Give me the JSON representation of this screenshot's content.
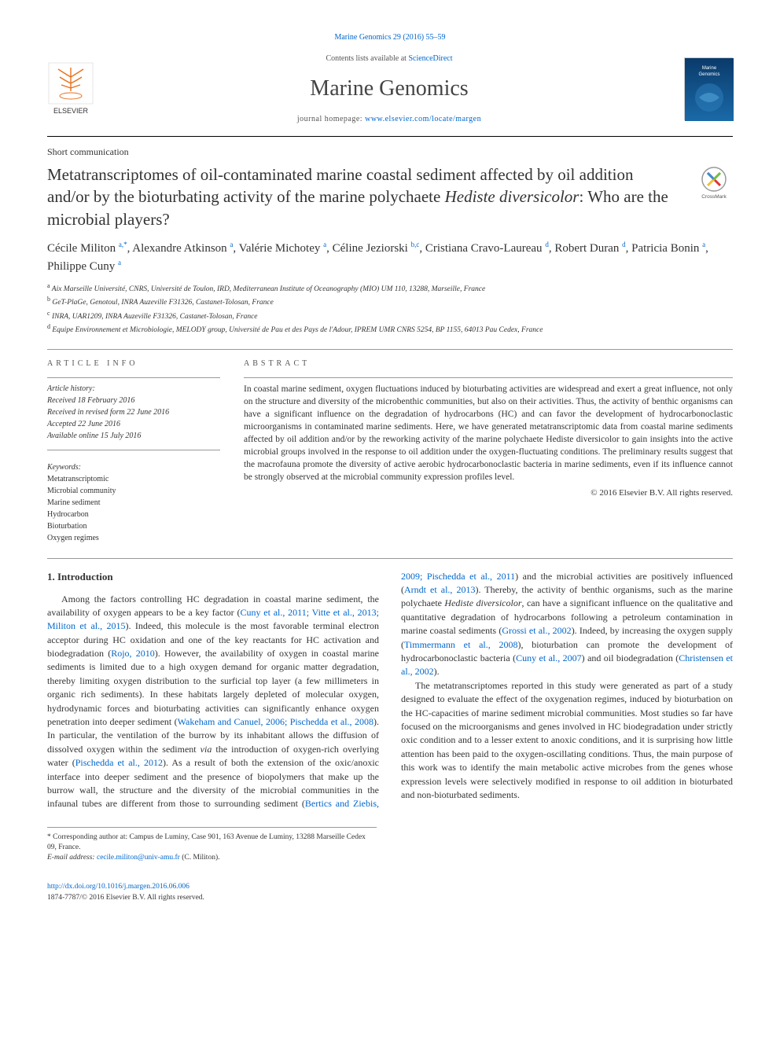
{
  "top_citation": "Marine Genomics 29 (2016) 55–59",
  "header": {
    "contents_prefix": "Contents lists available at ",
    "contents_link": "ScienceDirect",
    "journal_title": "Marine Genomics",
    "homepage_prefix": "journal homepage: ",
    "homepage_link": "www.elsevier.com/locate/margen"
  },
  "elsevier_logo": {
    "bg": "#ffffff",
    "tree_color": "#e9711c",
    "text": "ELSEVIER",
    "text_color": "#333333"
  },
  "journal_cover": {
    "label": "Marine Genomics",
    "bg_top": "#0a3a6a",
    "bg_bottom": "#1a6aa8",
    "text_color": "#ffffff"
  },
  "crossmark": {
    "label": "CrossMark",
    "colors": [
      "#e03535",
      "#f5c038",
      "#3b8ed0",
      "#6fbf4a"
    ]
  },
  "article_type": "Short communication",
  "title_plain_before": "Metatranscriptomes of oil-contaminated marine coastal sediment affected by oil addition and/or by the bioturbating activity of the marine polychaete ",
  "title_italic": "Hediste diversicolor",
  "title_plain_after": ": Who are the microbial players?",
  "authors": [
    {
      "name": "Cécile Militon",
      "aff": "a,*"
    },
    {
      "name": "Alexandre Atkinson",
      "aff": "a"
    },
    {
      "name": "Valérie Michotey",
      "aff": "a"
    },
    {
      "name": "Céline Jeziorski",
      "aff": "b,c"
    },
    {
      "name": "Cristiana Cravo-Laureau",
      "aff": "d"
    },
    {
      "name": "Robert Duran",
      "aff": "d"
    },
    {
      "name": "Patricia Bonin",
      "aff": "a"
    },
    {
      "name": "Philippe Cuny",
      "aff": "a"
    }
  ],
  "affiliations": [
    {
      "key": "a",
      "text": "Aix Marseille Université, CNRS, Université de Toulon, IRD, Mediterranean Institute of Oceanography (MIO) UM 110, 13288, Marseille, France"
    },
    {
      "key": "b",
      "text": "GeT-PlaGe, Genotoul, INRA Auzeville F31326, Castanet-Tolosan, France"
    },
    {
      "key": "c",
      "text": "INRA, UAR1209, INRA Auzeville F31326, Castanet-Tolosan, France"
    },
    {
      "key": "d",
      "text": "Equipe Environnement et Microbiologie, MELODY group, Université de Pau et des Pays de l'Adour, IPREM UMR CNRS 5254, BP 1155, 64013 Pau Cedex, France"
    }
  ],
  "info_label": "article info",
  "abstract_label": "abstract",
  "history": {
    "label": "Article history:",
    "received": "Received 18 February 2016",
    "revised": "Received in revised form 22 June 2016",
    "accepted": "Accepted 22 June 2016",
    "online": "Available online 15 July 2016"
  },
  "keywords": {
    "label": "Keywords:",
    "items": [
      "Metatranscriptomic",
      "Microbial community",
      "Marine sediment",
      "Hydrocarbon",
      "Bioturbation",
      "Oxygen regimes"
    ]
  },
  "abstract_text": "In coastal marine sediment, oxygen fluctuations induced by bioturbating activities are widespread and exert a great influence, not only on the structure and diversity of the microbenthic communities, but also on their activities. Thus, the activity of benthic organisms can have a significant influence on the degradation of hydrocarbons (HC) and can favor the development of hydrocarbonoclastic microorganisms in contaminated marine sediments. Here, we have generated metatranscriptomic data from coastal marine sediments affected by oil addition and/or by the reworking activity of the marine polychaete Hediste diversicolor to gain insights into the active microbial groups involved in the response to oil addition under the oxygen-fluctuating conditions. The preliminary results suggest that the macrofauna promote the diversity of active aerobic hydrocarbonoclastic bacteria in marine sediments, even if its influence cannot be strongly observed at the microbial community expression profiles level.",
  "abstract_copyright": "© 2016 Elsevier B.V. All rights reserved.",
  "section_heading": "1. Introduction",
  "intro_p1_a": "Among the factors controlling HC degradation in coastal marine sediment, the availability of oxygen appears to be a key factor (",
  "intro_p1_ref1": "Cuny et al., 2011; Vitte et al., 2013; Militon et al., 2015",
  "intro_p1_b": "). Indeed, this molecule is the most favorable terminal electron acceptor during HC oxidation and one of the key reactants for HC activation and biodegradation (",
  "intro_p1_ref2": "Rojo, 2010",
  "intro_p1_c": "). However, the availability of oxygen in coastal marine sediments is limited due to a high oxygen demand for organic matter degradation, thereby limiting oxygen distribution to the surficial top layer (a few millimeters in organic rich sediments). In these habitats largely depleted of molecular oxygen, hydrodynamic forces and bioturbating activities can significantly enhance oxygen penetration into deeper sediment (",
  "intro_p1_ref3": "Wakeham and Canuel, 2006; Pischedda et al., 2008",
  "intro_p1_d": "). In particular, the ventilation of the burrow by its inhabitant allows the diffusion of dissolved oxygen within the sediment ",
  "intro_p1_via": "via",
  "intro_p1_e": " the introduction of oxygen-rich overlying water (",
  "intro_p1_ref4": "Pischedda et al., 2012",
  "intro_p1_f": "). As a result of both the extension of the oxic/anoxic interface into deeper sediment and the presence of biopolymers that make up the burrow wall, the structure and the diversity of the microbial communities in the infaunal tubes are different from those to surrounding sediment (",
  "intro_p1_ref5": "Bertics and Ziebis, 2009; Pischedda et al., 2011",
  "intro_p1_g": ") and the microbial activities are positively influenced (",
  "intro_p1_ref6": "Arndt et al., 2013",
  "intro_p1_h": "). Thereby, the activity of benthic organisms, such as the marine polychaete ",
  "intro_p1_species": "Hediste diversicolor",
  "intro_p1_i": ", can have a significant influence on the qualitative and quantitative degradation of hydrocarbons following a petroleum contamination in marine coastal sediments (",
  "intro_p1_ref7": "Grossi et al., 2002",
  "intro_p1_j": "). Indeed, by increasing the oxygen supply (",
  "intro_p1_ref8": "Timmermann et al., 2008",
  "intro_p1_k": "), bioturbation can promote the development of hydrocarbonoclastic bacteria (",
  "intro_p1_ref9": "Cuny et al., 2007",
  "intro_p1_l": ") and oil biodegradation (",
  "intro_p1_ref10": "Christensen et al., 2002",
  "intro_p1_m": ").",
  "intro_p2": "The metatranscriptomes reported in this study were generated as part of a study designed to evaluate the effect of the oxygenation regimes, induced by bioturbation on the HC-capacities of marine sediment microbial communities. Most studies so far have focused on the microorganisms and genes involved in HC biodegradation under strictly oxic condition and to a lesser extent to anoxic conditions, and it is surprising how little attention has been paid to the oxygen-oscillating conditions. Thus, the main purpose of this work was to identify the main metabolic active microbes from the genes whose expression levels were selectively modified in response to oil addition in bioturbated and non-bioturbated sediments.",
  "corresponding": {
    "marker": "*",
    "text": "Corresponding author at: Campus de Luminy, Case 901, 163 Avenue de Luminy, 13288 Marseille Cedex 09, France.",
    "email_label": "E-mail address:",
    "email": "cecile.militon@univ-amu.fr",
    "email_suffix": "(C. Militon)."
  },
  "footer": {
    "doi": "http://dx.doi.org/10.1016/j.margen.2016.06.006",
    "issn_line": "1874-7787/© 2016 Elsevier B.V. All rights reserved."
  }
}
